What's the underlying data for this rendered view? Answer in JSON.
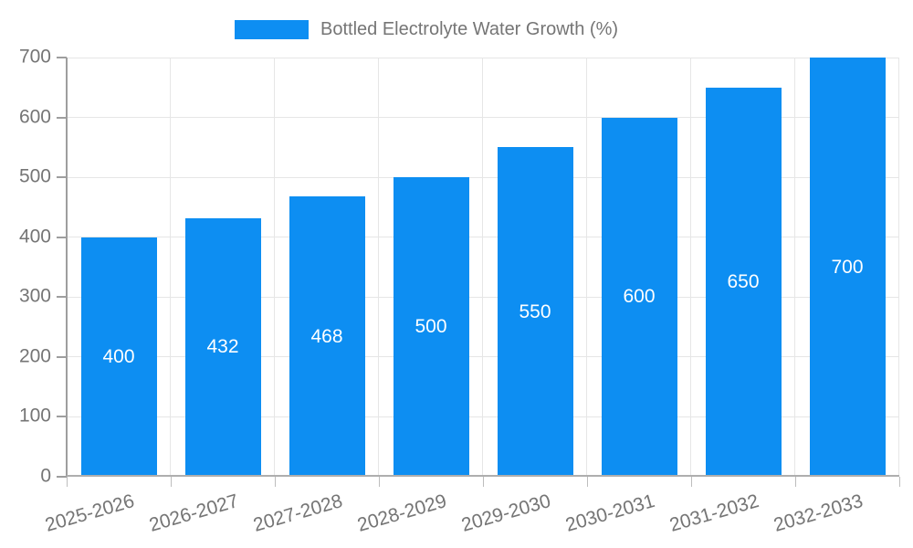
{
  "legend": {
    "label": "Bottled Electrolyte Water Growth (%)"
  },
  "chart_data": {
    "type": "bar",
    "title": "",
    "categories": [
      "2025-2026",
      "2026-2027",
      "2027-2028",
      "2028-2029",
      "2029-2030",
      "2030-2031",
      "2031-2032",
      "2032-2033"
    ],
    "series": [
      {
        "name": "Bottled Electrolyte Water Growth (%)",
        "values": [
          400,
          432,
          468,
          500,
          550,
          600,
          650,
          700
        ]
      }
    ],
    "value_labels": [
      "400",
      "432",
      "468",
      "500",
      "550",
      "600",
      "650",
      "700"
    ],
    "ytick_labels": [
      "0",
      "100",
      "200",
      "300",
      "400",
      "500",
      "600",
      "700"
    ],
    "xlabel": "",
    "ylabel": "",
    "ylim": [
      0,
      700
    ],
    "ytick_step": 100,
    "grid": true,
    "legend_position": "top",
    "value_label_position": "inside-center",
    "x_tick_rotation_deg": -16
  },
  "colors": {
    "bar": "#0d8ef2",
    "grid": "#e6e6e6",
    "axis": "#9e9e9e",
    "minor_tick": "#bdbdbd",
    "text": "#757575",
    "value_text": "#ffffff",
    "background": "#ffffff"
  }
}
